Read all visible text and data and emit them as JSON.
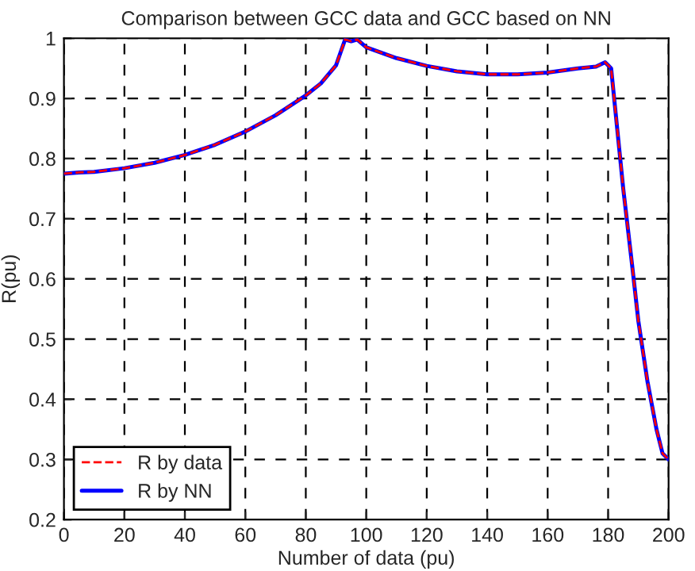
{
  "chart_data": {
    "type": "line",
    "title": "Comparison between GCC data and GCC based on NN",
    "xlabel": "Number of data (pu)",
    "ylabel": "R(pu)",
    "x": [
      0,
      5,
      10,
      20,
      30,
      40,
      50,
      60,
      70,
      80,
      85,
      90,
      93,
      95,
      97,
      100,
      110,
      120,
      130,
      140,
      150,
      160,
      170,
      176,
      179,
      180,
      181,
      185,
      188,
      190,
      193,
      196,
      198,
      200
    ],
    "series": [
      {
        "name": "R by data",
        "color": "#ff0000",
        "line_style": "dashed",
        "values": [
          0.775,
          0.777,
          0.778,
          0.784,
          0.793,
          0.806,
          0.823,
          0.845,
          0.872,
          0.905,
          0.925,
          0.955,
          0.998,
          0.995,
          0.998,
          0.985,
          0.967,
          0.954,
          0.945,
          0.94,
          0.94,
          0.943,
          0.95,
          0.953,
          0.96,
          0.955,
          0.95,
          0.75,
          0.62,
          0.53,
          0.43,
          0.35,
          0.31,
          0.3
        ]
      },
      {
        "name": "R by NN",
        "color": "#0000ff",
        "line_style": "solid",
        "values": [
          0.775,
          0.777,
          0.778,
          0.784,
          0.793,
          0.806,
          0.823,
          0.845,
          0.872,
          0.905,
          0.925,
          0.955,
          0.998,
          0.995,
          0.998,
          0.985,
          0.967,
          0.954,
          0.945,
          0.94,
          0.94,
          0.943,
          0.95,
          0.953,
          0.96,
          0.955,
          0.95,
          0.75,
          0.62,
          0.53,
          0.43,
          0.35,
          0.31,
          0.3
        ]
      }
    ],
    "xlim": [
      0,
      200
    ],
    "xticks": [
      0,
      20,
      40,
      60,
      80,
      100,
      120,
      140,
      160,
      180,
      200
    ],
    "ylim": [
      0.2,
      1
    ],
    "yticks": [
      0.2,
      0.3,
      0.4,
      0.5,
      0.6,
      0.7,
      0.8,
      0.9,
      1
    ],
    "grid": true,
    "legend": "bottom left",
    "marker": "none"
  }
}
